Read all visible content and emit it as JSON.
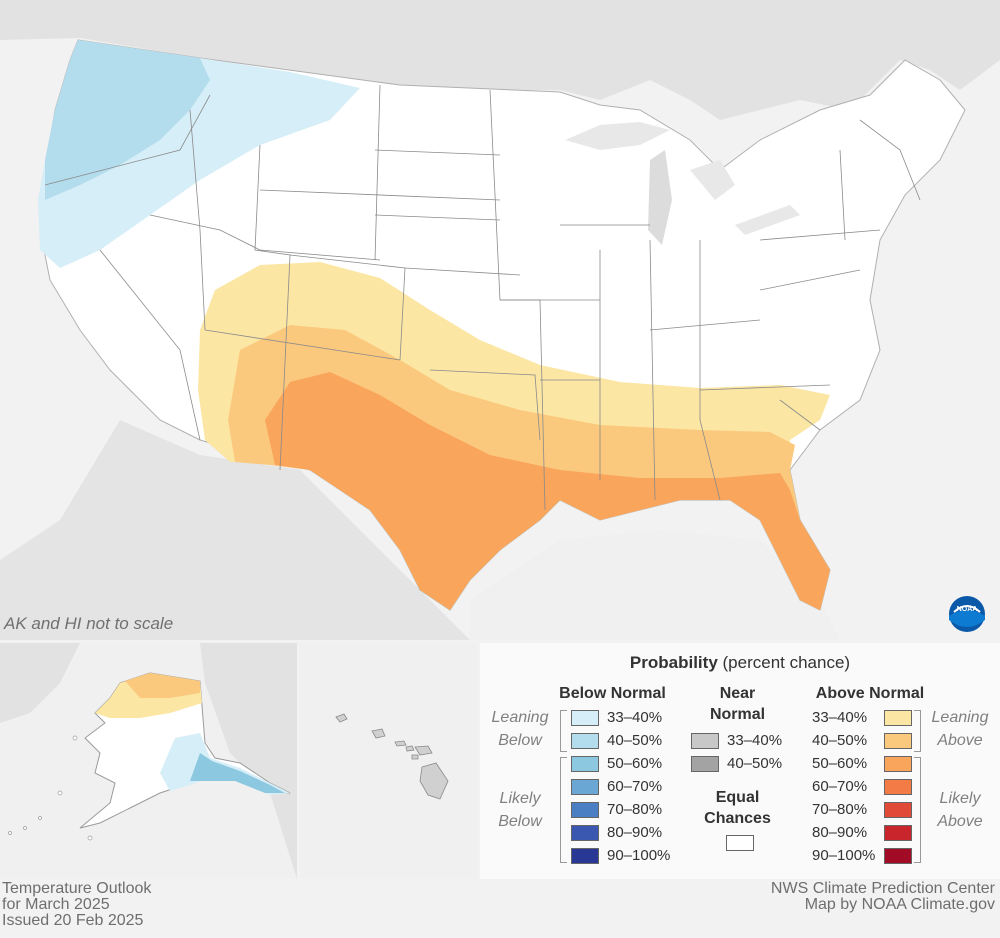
{
  "map": {
    "title_line1": "Temperature Outlook",
    "title_line2": "for March 2025",
    "issued": "Issued 20 Feb 2025",
    "credit_line1": "NWS Climate Prediction Center",
    "credit_line2": "Map by NOAA Climate.gov",
    "scale_note": "AK and HI not to scale",
    "logo_text": "NOAA"
  },
  "legend": {
    "title_bold": "Probability",
    "title_rest": " (percent chance)",
    "below_header": "Below Normal",
    "near_header_line1": "Near",
    "near_header_line2": "Normal",
    "above_header": "Above Normal",
    "equal_line1": "Equal",
    "equal_line2": "Chances",
    "leaning_below": [
      "Leaning",
      "Below"
    ],
    "likely_below": [
      "Likely",
      "Below"
    ],
    "leaning_above": [
      "Leaning",
      "Above"
    ],
    "likely_above": [
      "Likely",
      "Above"
    ],
    "below": [
      {
        "label": "33–40%",
        "color": "#d6eef7"
      },
      {
        "label": "40–50%",
        "color": "#b3dcec"
      },
      {
        "label": "50–60%",
        "color": "#8cc8e0"
      },
      {
        "label": "60–70%",
        "color": "#6aa7d4"
      },
      {
        "label": "70–80%",
        "color": "#4a7fc4"
      },
      {
        "label": "80–90%",
        "color": "#3a58b0"
      },
      {
        "label": "90–100%",
        "color": "#293895"
      }
    ],
    "near": [
      {
        "label": "33–40%",
        "color": "#c8c8c8"
      },
      {
        "label": "40–50%",
        "color": "#a3a3a3"
      }
    ],
    "above": [
      {
        "label": "33–40%",
        "color": "#fce6a4"
      },
      {
        "label": "40–50%",
        "color": "#fbc97e"
      },
      {
        "label": "50–60%",
        "color": "#f9a55c"
      },
      {
        "label": "60–70%",
        "color": "#f37b45"
      },
      {
        "label": "70–80%",
        "color": "#e04a36"
      },
      {
        "label": "80–90%",
        "color": "#c8262c"
      },
      {
        "label": "90–100%",
        "color": "#a10b25"
      }
    ],
    "equal_color": "#ffffff"
  }
}
